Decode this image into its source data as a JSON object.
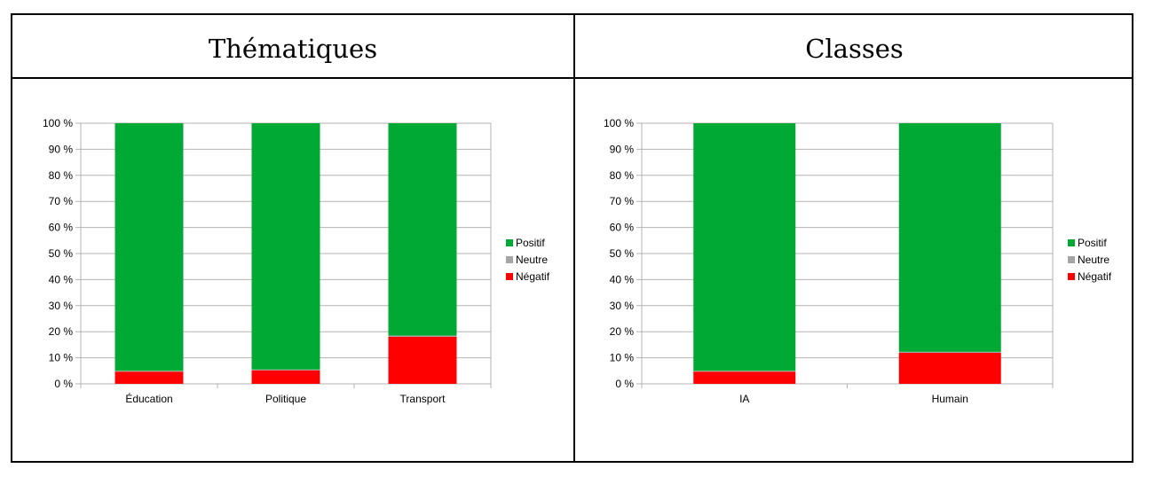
{
  "headers": [
    "Thématiques",
    "Classes"
  ],
  "chart_data": [
    {
      "type": "bar",
      "stacked": true,
      "categories": [
        "Éducation",
        "Politique",
        "Transport"
      ],
      "series": [
        {
          "name": "Positif",
          "color": "#00a933",
          "values": [
            95,
            94.5,
            81.5
          ]
        },
        {
          "name": "Neutre",
          "color": "#a5a5a5",
          "values": [
            0.3,
            0.3,
            0.4
          ]
        },
        {
          "name": "Négatif",
          "color": "#ff0000",
          "values": [
            4.7,
            5.2,
            18.1
          ]
        }
      ],
      "ylim": [
        0,
        100
      ],
      "yticks": [
        "0 %",
        "10 %",
        "20 %",
        "30 %",
        "40 %",
        "50 %",
        "60 %",
        "70 %",
        "80 %",
        "90 %",
        "100 %"
      ],
      "grid": true,
      "legend": "right"
    },
    {
      "type": "bar",
      "stacked": true,
      "categories": [
        "IA",
        "Humain"
      ],
      "series": [
        {
          "name": "Positif",
          "color": "#00a933",
          "values": [
            95,
            87.7
          ]
        },
        {
          "name": "Neutre",
          "color": "#a5a5a5",
          "values": [
            0.3,
            0.4
          ]
        },
        {
          "name": "Négatif",
          "color": "#ff0000",
          "values": [
            4.7,
            11.9
          ]
        }
      ],
      "ylim": [
        0,
        100
      ],
      "yticks": [
        "0 %",
        "10 %",
        "20 %",
        "30 %",
        "40 %",
        "50 %",
        "60 %",
        "70 %",
        "80 %",
        "90 %",
        "100 %"
      ],
      "grid": true,
      "legend": "right"
    }
  ]
}
